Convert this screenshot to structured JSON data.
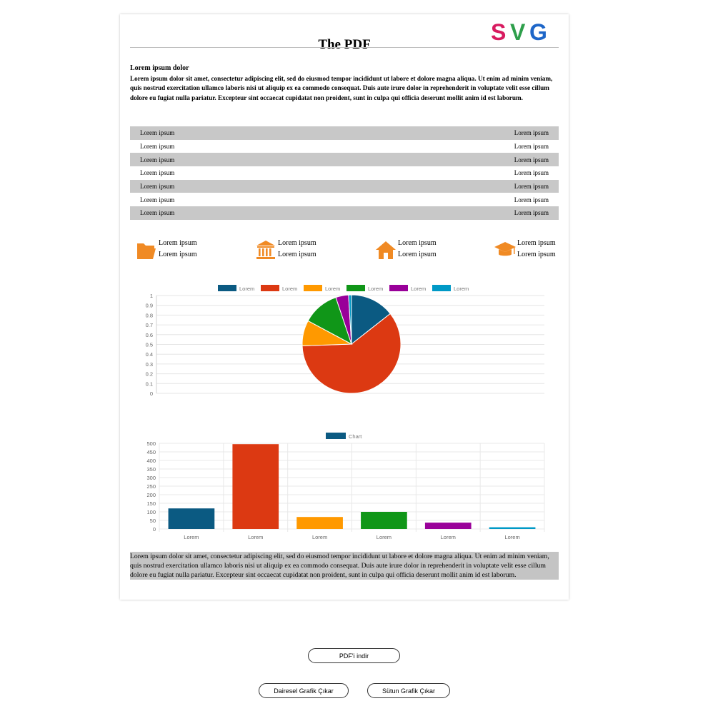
{
  "page": {
    "title": "The PDF",
    "logo_text": "SVG",
    "logo_colors": [
      "#d81b60",
      "#2e9f4b",
      "#1e66c8"
    ],
    "heading": "Lorem ipsum dolor",
    "intro": "Lorem ipsum dolor sit amet, consectetur adipiscing elit, sed do eiusmod tempor incididunt ut labore et dolore magna aliqua. Ut enim ad minim veniam, quis nostrud exercitation ullamco laboris nisi ut aliquip ex ea commodo consequat. Duis aute irure dolor in reprehenderit in voluptate velit esse cillum dolore eu fugiat nulla pariatur. Excepteur sint occaecat cupidatat non proident, sunt in culpa qui officia deserunt mollit anim id est laborum.",
    "table_rows": [
      [
        "Lorem ipsum",
        "Lorem ipsum"
      ],
      [
        "Lorem ipsum",
        "Lorem ipsum"
      ],
      [
        "Lorem ipsum",
        "Lorem ipsum"
      ],
      [
        "Lorem ipsum",
        "Lorem ipsum"
      ],
      [
        "Lorem ipsum",
        "Lorem ipsum"
      ],
      [
        "Lorem ipsum",
        "Lorem ipsum"
      ],
      [
        "Lorem ipsum",
        "Lorem ipsum"
      ]
    ],
    "info_items": [
      {
        "icon": "folder-icon",
        "line1": "Lorem ipsum",
        "line2": "Lorem ipsum"
      },
      {
        "icon": "bank-icon",
        "line1": "Lorem ipsum",
        "line2": "Lorem ipsum"
      },
      {
        "icon": "house-icon",
        "line1": "Lorem ipsum",
        "line2": "Lorem ipsum"
      },
      {
        "icon": "graduation-cap-icon",
        "line1": "Lorem ipsum",
        "line2": "Lorem ipsum"
      }
    ],
    "accent_color": "#f08a24",
    "footer_text": "Lorem ipsum dolor sit amet, consectetur adipiscing elit, sed do eiusmod tempor incididunt ut labore et dolore magna aliqua. Ut enim ad minim veniam, quis nostrud exercitation ullamco laboris nisi ut aliquip ex ea commodo consequat. Duis aute irure dolor in reprehenderit in voluptate velit esse cillum dolore eu fugiat nulla pariatur. Excepteur sint occaecat cupidatat non proident, sunt in culpa qui officia deserunt mollit anim id est laborum."
  },
  "buttons": {
    "download": "PDF'i indir",
    "pie": "Dairesel Grafik Çıkar",
    "bar": "Sütun Grafik Çıkar"
  },
  "chart_data": [
    {
      "type": "pie",
      "labels": [
        "Lorem",
        "Lorem",
        "Lorem",
        "Lorem",
        "Lorem",
        "Lorem"
      ],
      "values": [
        120,
        500,
        70,
        100,
        35,
        8
      ],
      "colors": [
        "#0b5a82",
        "#dc3912",
        "#ff9900",
        "#109618",
        "#990099",
        "#0099c6"
      ],
      "yticks": [
        "1",
        "0.9",
        "0.8",
        "0.7",
        "0.6",
        "0.5",
        "0.4",
        "0.3",
        "0.2",
        "0.1",
        "0"
      ],
      "ylim": [
        0,
        1
      ],
      "grid": true,
      "legend": "top"
    },
    {
      "type": "bar",
      "categories": [
        "Lorem",
        "Lorem",
        "Lorem",
        "Lorem",
        "Lorem",
        "Lorem"
      ],
      "series": [
        {
          "name": "Chart",
          "values": [
            120,
            495,
            70,
            100,
            37,
            10
          ]
        }
      ],
      "colors": [
        "#0b5a82",
        "#dc3912",
        "#ff9900",
        "#109618",
        "#990099",
        "#0099c6"
      ],
      "legend_color": "#0b5a82",
      "yticks": [
        "500",
        "450",
        "400",
        "350",
        "300",
        "250",
        "200",
        "150",
        "100",
        "50",
        "0"
      ],
      "ylim": [
        0,
        500
      ],
      "grid": true,
      "legend": "top"
    }
  ]
}
